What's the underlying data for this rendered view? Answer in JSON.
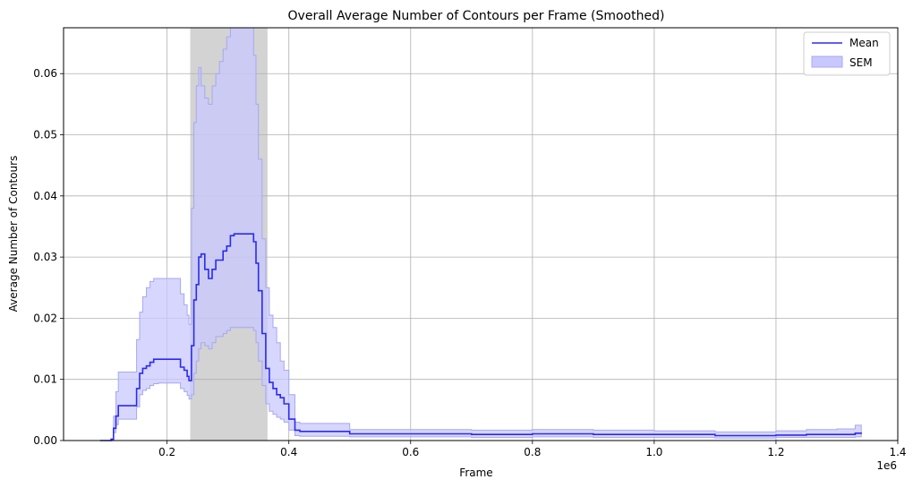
{
  "chart_data": {
    "type": "line",
    "title": "Overall Average Number of Contours per Frame (Smoothed)",
    "xlabel": "Frame",
    "ylabel": "Average Number of Contours",
    "x_offset_label": "1e6",
    "xlim": [
      30000,
      1400000
    ],
    "ylim": [
      0,
      0.0675
    ],
    "x_ticks": [
      0.2,
      0.4,
      0.6,
      0.8,
      1.0,
      1.2,
      1.4
    ],
    "x_tick_labels": [
      "0.2",
      "0.4",
      "0.6",
      "0.8",
      "1.0",
      "1.2",
      "1.4"
    ],
    "y_ticks": [
      0,
      0.01,
      0.02,
      0.03,
      0.04,
      0.05,
      0.06
    ],
    "y_tick_labels": [
      "0.00",
      "0.01",
      "0.02",
      "0.03",
      "0.04",
      "0.05",
      "0.06"
    ],
    "grid": true,
    "legend": {
      "position": "top-right",
      "entries": [
        "Mean",
        "SEM"
      ]
    },
    "highlight_span": {
      "x_start": 238000,
      "x_end": 365000,
      "color": "#d3d3d3"
    },
    "colors": {
      "mean": "#2b2bf0",
      "sem_fill": "#c8c8ff",
      "sem_edge": "#a8a8f0"
    },
    "series": [
      {
        "name": "Mean",
        "x": [
          90000,
          108000,
          112000,
          116000,
          120000,
          126000,
          150000,
          155000,
          160000,
          166000,
          172000,
          178000,
          186000,
          215000,
          222000,
          228000,
          233000,
          236000,
          240000,
          244000,
          248000,
          252000,
          256000,
          262000,
          268000,
          274000,
          280000,
          286000,
          292000,
          298000,
          304000,
          310000,
          318000,
          338000,
          342000,
          346000,
          350000,
          356000,
          362000,
          368000,
          374000,
          380000,
          386000,
          392000,
          400000,
          410000,
          418000,
          440000,
          500000,
          600000,
          700000,
          800000,
          900000,
          1000000,
          1100000,
          1200000,
          1250000,
          1300000,
          1330000,
          1340000
        ],
        "y": [
          0.0,
          0.0002,
          0.002,
          0.004,
          0.0057,
          0.0057,
          0.0085,
          0.011,
          0.0118,
          0.0122,
          0.0128,
          0.0133,
          0.0133,
          0.0133,
          0.012,
          0.0115,
          0.0105,
          0.0098,
          0.0155,
          0.023,
          0.0255,
          0.03,
          0.0305,
          0.028,
          0.0265,
          0.028,
          0.0295,
          0.0295,
          0.031,
          0.0318,
          0.0335,
          0.0338,
          0.0338,
          0.0338,
          0.0325,
          0.029,
          0.0245,
          0.0175,
          0.0118,
          0.0095,
          0.0085,
          0.0075,
          0.007,
          0.006,
          0.0035,
          0.0017,
          0.0015,
          0.0015,
          0.0011,
          0.0011,
          0.001,
          0.0011,
          0.001,
          0.001,
          0.0008,
          0.0009,
          0.001,
          0.001,
          0.0012,
          0.0013
        ]
      },
      {
        "name": "SEM",
        "x": [
          90000,
          108000,
          112000,
          116000,
          120000,
          126000,
          150000,
          155000,
          160000,
          166000,
          172000,
          178000,
          186000,
          215000,
          222000,
          228000,
          233000,
          236000,
          240000,
          244000,
          248000,
          252000,
          256000,
          262000,
          268000,
          274000,
          280000,
          286000,
          292000,
          298000,
          304000,
          310000,
          318000,
          338000,
          342000,
          346000,
          350000,
          356000,
          362000,
          368000,
          374000,
          380000,
          386000,
          392000,
          400000,
          410000,
          418000,
          440000,
          500000,
          600000,
          700000,
          800000,
          900000,
          1000000,
          1100000,
          1200000,
          1250000,
          1300000,
          1330000,
          1340000
        ],
        "lower": [
          0.0,
          0.0001,
          0.0013,
          0.0026,
          0.0035,
          0.0035,
          0.0055,
          0.0075,
          0.0082,
          0.0085,
          0.009,
          0.0093,
          0.0094,
          0.0094,
          0.0085,
          0.008,
          0.0074,
          0.0068,
          0.0075,
          0.011,
          0.013,
          0.015,
          0.016,
          0.0155,
          0.015,
          0.016,
          0.017,
          0.017,
          0.0175,
          0.018,
          0.0185,
          0.0185,
          0.0185,
          0.0185,
          0.018,
          0.016,
          0.013,
          0.009,
          0.006,
          0.0048,
          0.0043,
          0.0038,
          0.0035,
          0.003,
          0.0017,
          0.0008,
          0.0007,
          0.0007,
          0.0006,
          0.0006,
          0.0005,
          0.0006,
          0.0005,
          0.0005,
          0.0004,
          0.0005,
          0.0005,
          0.0005,
          0.0006,
          0.0007
        ],
        "upper": [
          0.0,
          0.0003,
          0.004,
          0.008,
          0.0112,
          0.0112,
          0.0165,
          0.021,
          0.0235,
          0.025,
          0.026,
          0.0265,
          0.0265,
          0.0265,
          0.024,
          0.0222,
          0.0205,
          0.019,
          0.038,
          0.052,
          0.058,
          0.061,
          0.058,
          0.056,
          0.055,
          0.058,
          0.06,
          0.062,
          0.064,
          0.066,
          0.0675,
          0.0675,
          0.0675,
          0.0675,
          0.063,
          0.055,
          0.046,
          0.033,
          0.025,
          0.0205,
          0.0185,
          0.016,
          0.013,
          0.0115,
          0.0075,
          0.003,
          0.0028,
          0.0028,
          0.0018,
          0.0018,
          0.0017,
          0.0018,
          0.0017,
          0.0016,
          0.0014,
          0.0016,
          0.0018,
          0.0019,
          0.0025,
          0.0026
        ]
      }
    ]
  }
}
